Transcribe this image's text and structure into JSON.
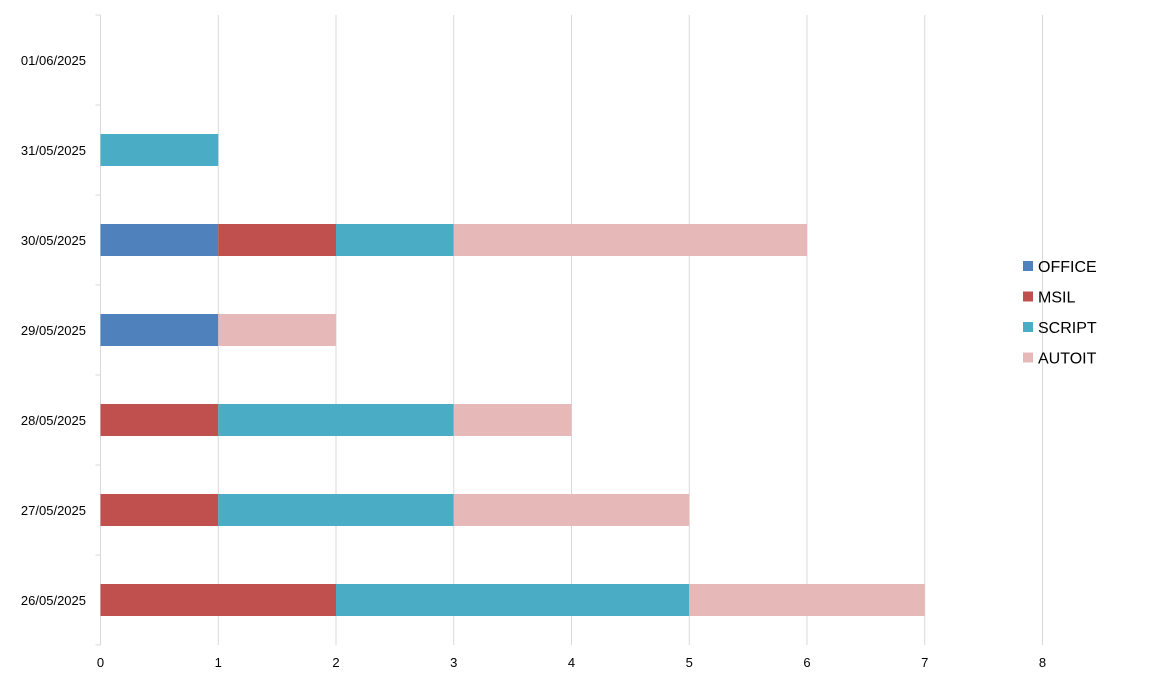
{
  "chart_data": {
    "type": "bar",
    "orientation": "horizontal",
    "stacked": true,
    "categories": [
      "26/05/2025",
      "27/05/2025",
      "28/05/2025",
      "29/05/2025",
      "30/05/2025",
      "31/05/2025",
      "01/06/2025"
    ],
    "series": [
      {
        "name": "OFFICE",
        "color": "#4f81bd",
        "values": [
          0,
          0,
          0,
          1,
          1,
          0,
          0
        ]
      },
      {
        "name": "MSIL",
        "color": "#c0504d",
        "values": [
          2,
          1,
          1,
          0,
          1,
          0,
          0
        ]
      },
      {
        "name": "SCRIPT",
        "color": "#4bacc6",
        "values": [
          3,
          2,
          2,
          0,
          1,
          1,
          0
        ]
      },
      {
        "name": "AUTOIT",
        "color": "#e6b9b8",
        "values": [
          2,
          2,
          1,
          1,
          3,
          0,
          0
        ]
      }
    ],
    "xlim": [
      0,
      8
    ],
    "xticks": [
      "0",
      "1",
      "2",
      "3",
      "4",
      "5",
      "6",
      "7",
      "8"
    ],
    "title": "",
    "xlabel": "",
    "ylabel": "",
    "grid": "vertical",
    "legend_position": "right"
  }
}
